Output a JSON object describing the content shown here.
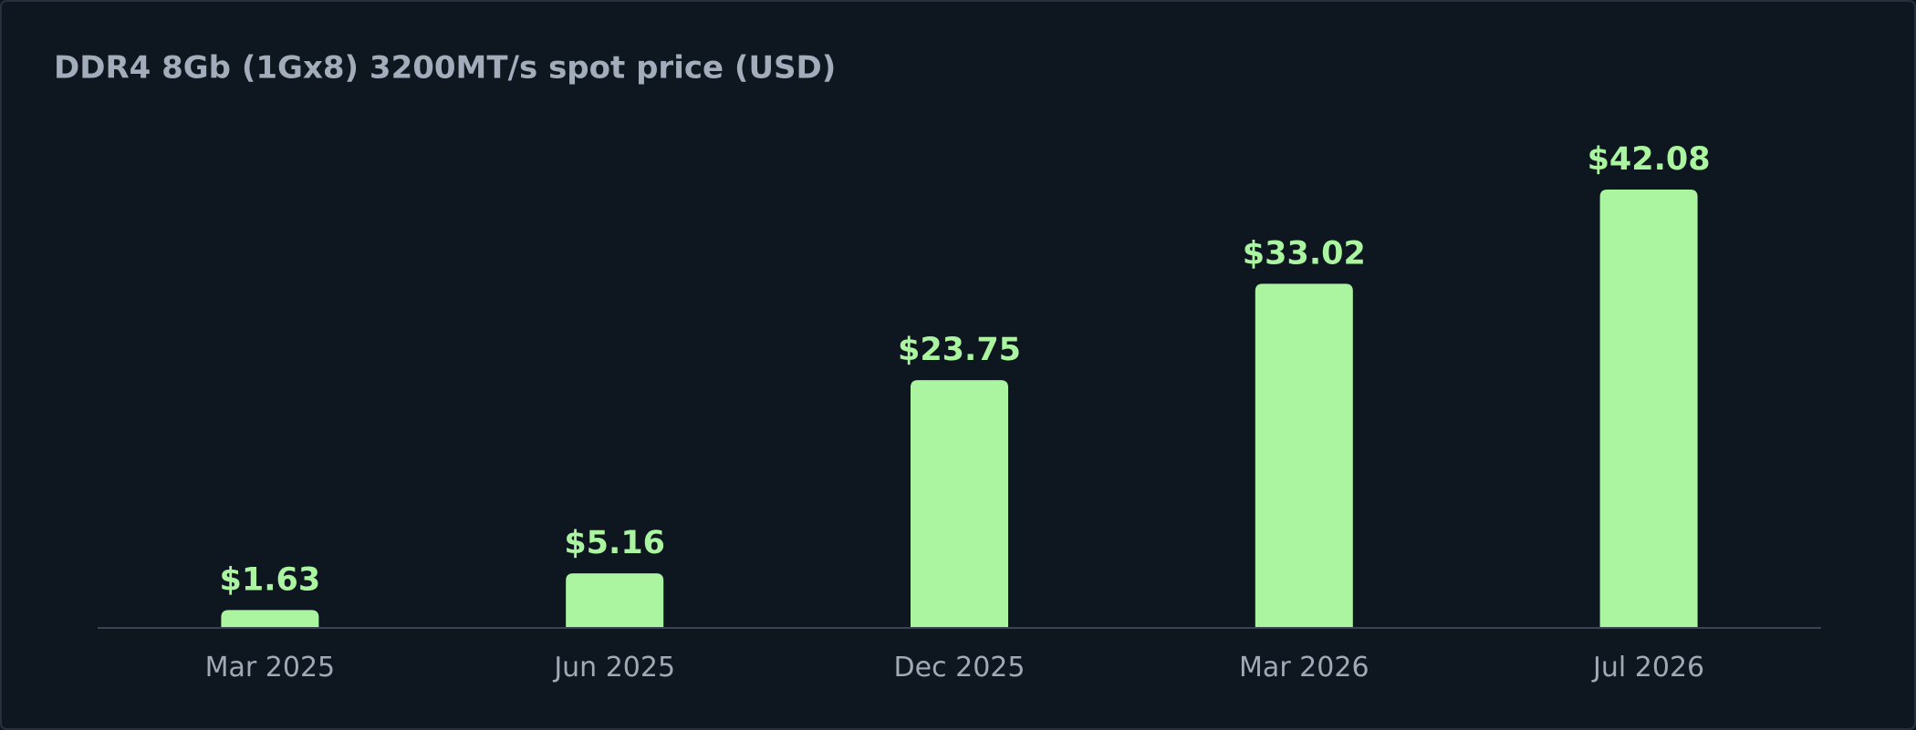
{
  "chart_data": {
    "type": "bar",
    "title": "DDR4 8Gb (1Gx8) 3200MT/s spot price (USD)",
    "categories": [
      "Mar 2025",
      "Jun 2025",
      "Dec 2025",
      "Mar 2026",
      "Jul 2026"
    ],
    "values": [
      1.63,
      5.16,
      23.75,
      33.02,
      42.08
    ],
    "value_labels": [
      "$1.63",
      "$5.16",
      "$23.75",
      "$33.02",
      "$42.08"
    ],
    "color": "#abf5a1"
  }
}
